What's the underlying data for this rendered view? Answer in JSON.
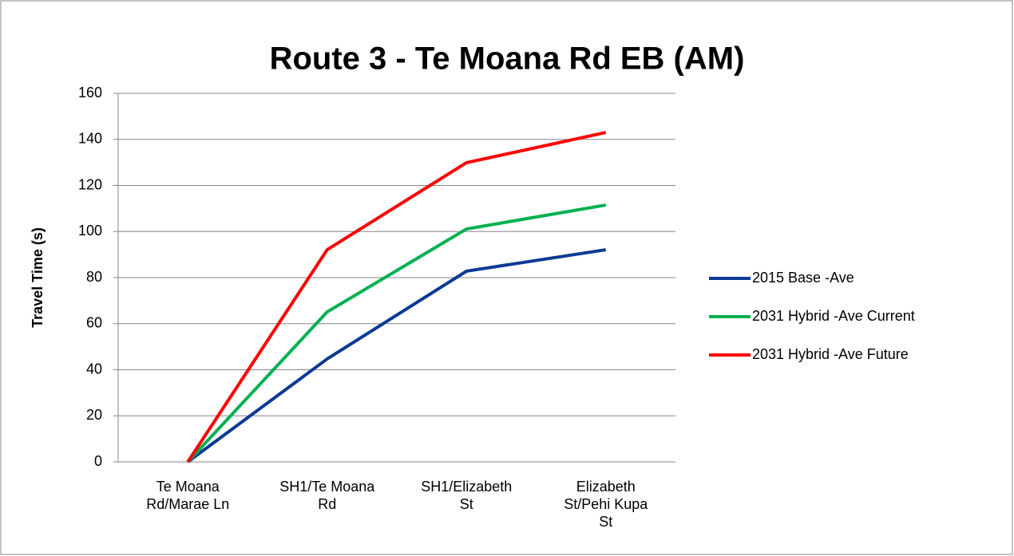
{
  "chart_data": {
    "type": "line",
    "title": "Route 3 - Te Moana Rd EB (AM)",
    "y_label": "Travel Time (s)",
    "categories": [
      "Te Moana Rd/Marae Ln",
      "SH1/Te Moana Rd",
      "SH1/Elizabeth St",
      "Elizabeth St/Pehi Kupa St"
    ],
    "series": [
      {
        "name": "2015 Base -Ave",
        "color": "#0b3a94",
        "values": [
          0,
          44.7,
          82.8,
          92.1
        ]
      },
      {
        "name": "2031 Hybrid -Ave Current",
        "color": "#00b050",
        "values": [
          0,
          65.1,
          101.1,
          111.5
        ]
      },
      {
        "name": "2031 Hybrid -Ave Future",
        "color": "#ff0000",
        "values": [
          0,
          92.1,
          129.9,
          143.0
        ]
      }
    ],
    "ylim": [
      0,
      160
    ],
    "yticks": [
      0,
      20,
      40,
      60,
      80,
      100,
      120,
      140,
      160
    ],
    "grid": true,
    "legend": "right"
  }
}
